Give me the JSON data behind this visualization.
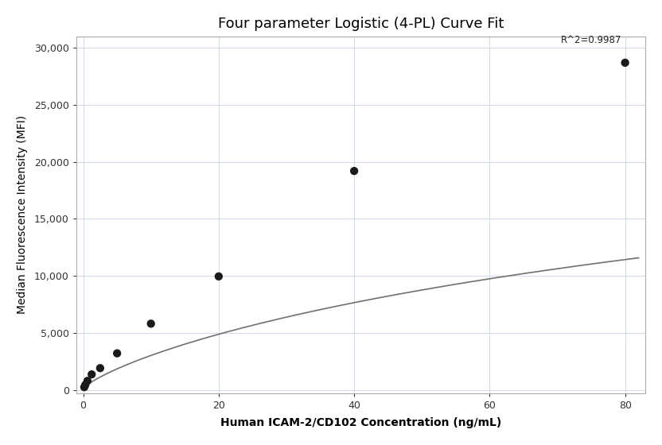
{
  "title": "Four parameter Logistic (4-PL) Curve Fit",
  "xlabel": "Human ICAM-2/CD102 Concentration (ng/mL)",
  "ylabel": "Median Fluorescence Intensity (MFI)",
  "scatter_x": [
    0.156,
    0.313,
    0.625,
    1.25,
    2.5,
    5.0,
    10.0,
    20.0,
    40.0,
    80.0
  ],
  "scatter_y": [
    230,
    430,
    780,
    1350,
    1900,
    3200,
    5800,
    9950,
    19200,
    28700
  ],
  "r_squared": "R^2=0.9987",
  "xlim": [
    -1,
    83
  ],
  "ylim": [
    -300,
    31000
  ],
  "xticks": [
    0,
    20,
    40,
    60,
    80
  ],
  "yticks": [
    0,
    5000,
    10000,
    15000,
    20000,
    25000,
    30000
  ],
  "ytick_labels": [
    "0",
    "5,000",
    "10,000",
    "15,000",
    "20,000",
    "25,000",
    "30,000"
  ],
  "dot_color": "#1a1a1a",
  "dot_size": 55,
  "curve_color": "#707070",
  "curve_linewidth": 1.2,
  "grid_color": "#c8d4e8",
  "grid_linewidth": 0.6,
  "bg_color": "#ffffff",
  "title_fontsize": 13,
  "label_fontsize": 10,
  "tick_fontsize": 9,
  "annotation_fontsize": 8.5,
  "r2_x": 79.5,
  "r2_y": 30200
}
